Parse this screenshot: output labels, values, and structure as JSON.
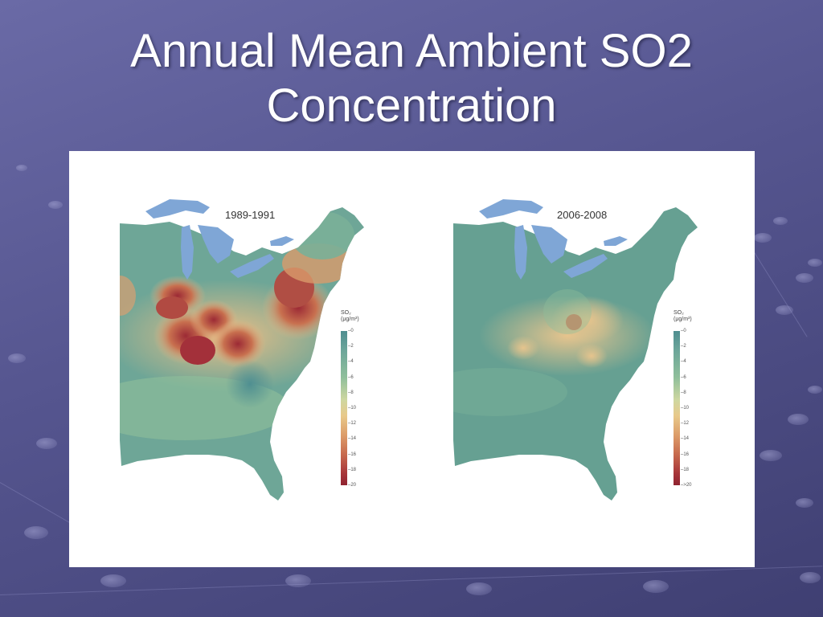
{
  "slide": {
    "title_line1": "Annual Mean Ambient SO2",
    "title_line2": "Concentration"
  },
  "maps": [
    {
      "period": "1989-1991",
      "legend_title_line1": "SO₂",
      "legend_title_line2": "(μg/m³)",
      "legend_ticks": [
        "0",
        "2",
        "4",
        "6",
        "8",
        "10",
        "12",
        "14",
        "16",
        "18",
        "20"
      ]
    },
    {
      "period": "2006-2008",
      "legend_title_line1": "SO₂",
      "legend_title_line2": "(μg/m³)",
      "legend_ticks": [
        "0",
        "2",
        "4",
        "6",
        "8",
        "10",
        "12",
        "14",
        "16",
        "18",
        ">20"
      ]
    }
  ],
  "colors": {
    "low": "#5f9e93",
    "mid": "#e3c98f",
    "high": "#a3303a",
    "lakes": "#7fa6d6"
  }
}
